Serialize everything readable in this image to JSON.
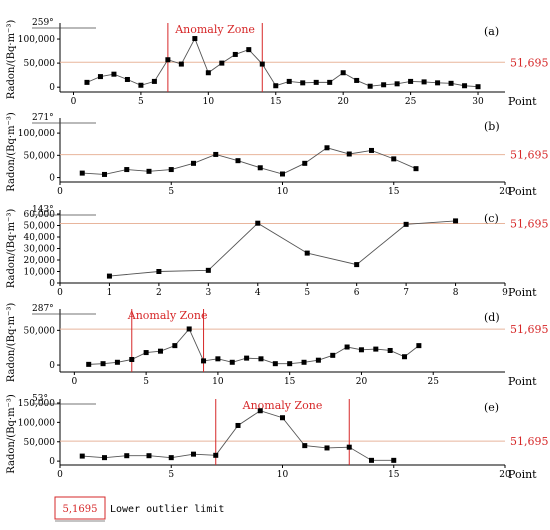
{
  "threshold_label": "51,695",
  "legend": {
    "value": "5,1695",
    "text": "Lower outlier limit"
  },
  "chart_data": [
    {
      "type": "line",
      "panel": "(a)",
      "angle": "259°",
      "xlabel": "Point",
      "ylabel": "Radon/(Bq·m⁻³)",
      "xlim": [
        -1,
        32
      ],
      "ylim": [
        -10000,
        125000
      ],
      "xticks": [
        0,
        5,
        10,
        15,
        20,
        25,
        30
      ],
      "yticks": [
        0,
        50000,
        100000
      ],
      "ytick_labels": [
        "0",
        "50,000",
        "100,000"
      ],
      "threshold": 51695,
      "anomaly_zone": {
        "label": "Anomaly Zone",
        "x0": 7,
        "x1": 14
      },
      "x": [
        1,
        2,
        3,
        4,
        5,
        6,
        7,
        8,
        9,
        10,
        11,
        12,
        13,
        14,
        15,
        16,
        17,
        18,
        19,
        20,
        21,
        22,
        23,
        24,
        25,
        26,
        27,
        28,
        29,
        30
      ],
      "y": [
        10000,
        22000,
        27000,
        16000,
        4000,
        12000,
        57000,
        48000,
        101000,
        30000,
        50000,
        68000,
        78000,
        48000,
        3000,
        12000,
        9000,
        10000,
        10000,
        30000,
        14000,
        2000,
        5000,
        7000,
        12000,
        11000,
        9000,
        8000,
        3000,
        1000
      ]
    },
    {
      "type": "line",
      "panel": "(b)",
      "angle": "271°",
      "xlabel": "Point",
      "ylabel": "Radon/(Bq·m⁻³)",
      "xlim": [
        0,
        20
      ],
      "ylim": [
        -10000,
        125000
      ],
      "xticks": [
        0,
        5,
        10,
        15,
        20
      ],
      "yticks": [
        0,
        50000,
        100000
      ],
      "ytick_labels": [
        "0",
        "50,000",
        "100,000"
      ],
      "threshold": 51695,
      "x": [
        1,
        2,
        3,
        4,
        5,
        6,
        7,
        8,
        9,
        10,
        11,
        12,
        13,
        14,
        15,
        16
      ],
      "y": [
        10000,
        7000,
        18000,
        14000,
        18000,
        32000,
        52000,
        38000,
        22000,
        8000,
        32000,
        67000,
        53000,
        61000,
        42000,
        20000
      ]
    },
    {
      "type": "line",
      "panel": "(c)",
      "angle": "143°",
      "xlabel": "Point",
      "ylabel": "Radon/(Bq·m⁻³)",
      "xlim": [
        0,
        9
      ],
      "ylim": [
        0,
        60000
      ],
      "xticks": [
        0,
        1,
        2,
        3,
        4,
        5,
        6,
        7,
        8,
        9
      ],
      "yticks": [
        0,
        10000,
        20000,
        30000,
        40000,
        50000,
        60000
      ],
      "ytick_labels": [
        "0",
        "10,000",
        "20,000",
        "30,000",
        "40,000",
        "50,000",
        "60,000"
      ],
      "threshold": 51695,
      "x": [
        1,
        2,
        3,
        4,
        5,
        6,
        7,
        8
      ],
      "y": [
        6000,
        10000,
        11000,
        52000,
        26000,
        16000,
        51000,
        54000
      ]
    },
    {
      "type": "line",
      "panel": "(d)",
      "angle": "287°",
      "xlabel": "Point",
      "ylabel": "Radon/(Bq·m⁻³)",
      "xlim": [
        -1,
        30
      ],
      "ylim": [
        -10000,
        75000
      ],
      "xticks": [
        0,
        5,
        10,
        15,
        20,
        25
      ],
      "yticks": [
        0,
        50000
      ],
      "ytick_labels": [
        "0",
        "50,000"
      ],
      "threshold": 51695,
      "anomaly_zone": {
        "label": "Anomaly Zone",
        "x0": 4,
        "x1": 9
      },
      "x": [
        1,
        2,
        3,
        4,
        5,
        6,
        7,
        8,
        9,
        10,
        11,
        12,
        13,
        14,
        15,
        16,
        17,
        18,
        19,
        20,
        21,
        22,
        23,
        24
      ],
      "y": [
        1000,
        2000,
        4000,
        8000,
        18000,
        20000,
        28000,
        52000,
        6000,
        9000,
        4000,
        10000,
        9000,
        2000,
        2000,
        4000,
        7000,
        14000,
        26000,
        22000,
        23000,
        21000,
        12000,
        28000
      ]
    },
    {
      "type": "line",
      "panel": "(e)",
      "angle": "53°",
      "xlabel": "Point",
      "ylabel": "Radon/(Bq·m⁻³)",
      "xlim": [
        0,
        20
      ],
      "ylim": [
        -10000,
        150000
      ],
      "xticks": [
        0,
        5,
        10,
        15,
        20
      ],
      "yticks": [
        0,
        50000,
        100000,
        150000
      ],
      "ytick_labels": [
        "0",
        "50,000",
        "100,000",
        "150,000"
      ],
      "threshold": 51695,
      "anomaly_zone": {
        "label": "Anomaly Zone",
        "x0": 7,
        "x1": 13
      },
      "x": [
        1,
        2,
        3,
        4,
        5,
        6,
        7,
        8,
        9,
        10,
        11,
        12,
        13,
        14,
        15
      ],
      "y": [
        13000,
        9000,
        14000,
        14000,
        9000,
        18000,
        15000,
        92000,
        130000,
        112000,
        40000,
        34000,
        36000,
        2000,
        2000
      ]
    }
  ]
}
